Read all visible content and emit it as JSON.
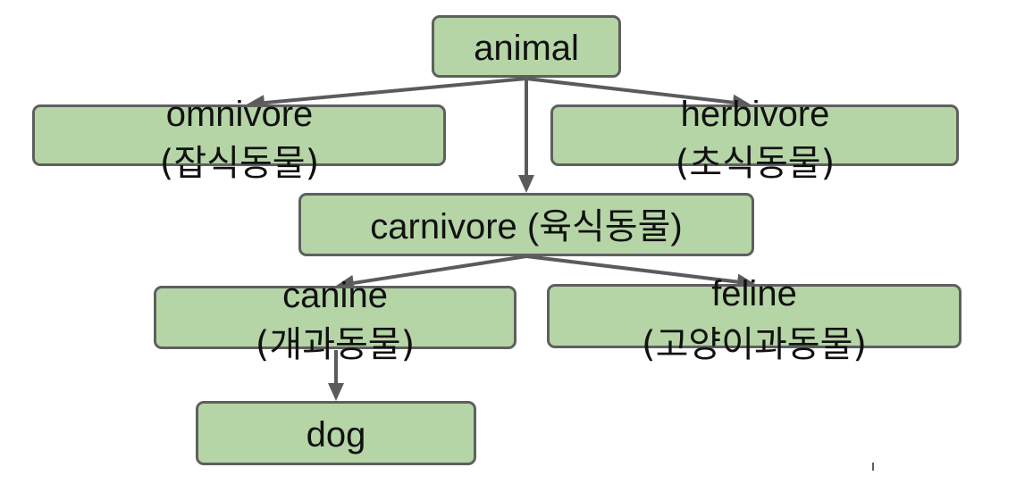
{
  "diagram": {
    "nodes": [
      {
        "id": "animal",
        "lines": [
          "animal"
        ]
      },
      {
        "id": "omnivore",
        "lines": [
          "omnivore",
          "(잡식동물)"
        ]
      },
      {
        "id": "herbivore",
        "lines": [
          "herbivore",
          "(초식동물)"
        ]
      },
      {
        "id": "carnivore",
        "lines": [
          "carnivore (육식동물)"
        ]
      },
      {
        "id": "canine",
        "lines": [
          "canine",
          "(개과동물)"
        ]
      },
      {
        "id": "feline",
        "lines": [
          "feline",
          "(고양이과동물)"
        ]
      },
      {
        "id": "dog",
        "lines": [
          "dog"
        ]
      }
    ],
    "edges": [
      {
        "from": "animal",
        "to": "omnivore"
      },
      {
        "from": "animal",
        "to": "herbivore"
      },
      {
        "from": "animal",
        "to": "carnivore"
      },
      {
        "from": "carnivore",
        "to": "canine"
      },
      {
        "from": "carnivore",
        "to": "feline"
      },
      {
        "from": "canine",
        "to": "dog"
      }
    ],
    "colors": {
      "node_fill": "#b5d5a6",
      "node_border": "#5f5f5f",
      "edge": "#5b5b5b",
      "text": "#111111"
    }
  }
}
